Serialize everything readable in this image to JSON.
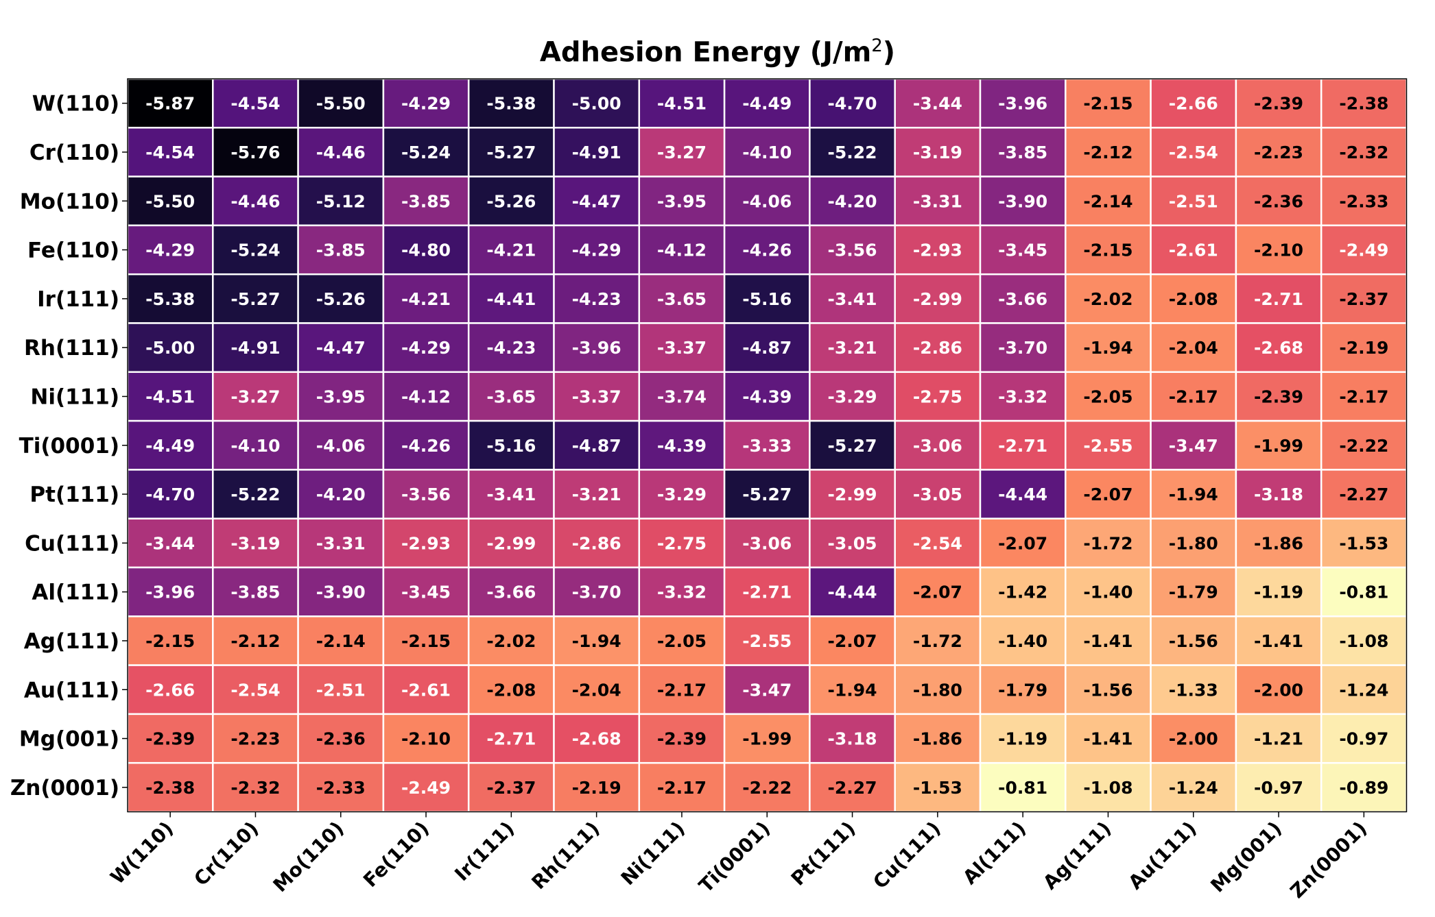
{
  "chart_data": {
    "type": "heatmap",
    "title": "Adhesion Energy (J/m",
    "title_superscript": "2",
    "title_suffix": ")",
    "colormap": "magma",
    "color_range": [
      -5.87,
      -0.81
    ],
    "grid": true,
    "text_colors": {
      "light": "#ffffff",
      "dark": "#000000"
    },
    "rows": [
      "W(110)",
      "Cr(110)",
      "Mo(110)",
      "Fe(110)",
      "Ir(111)",
      "Rh(111)",
      "Ni(111)",
      "Ti(0001)",
      "Pt(111)",
      "Cu(111)",
      "Al(111)",
      "Ag(111)",
      "Au(111)",
      "Mg(001)",
      "Zn(0001)"
    ],
    "columns": [
      "W(110)",
      "Cr(110)",
      "Mo(110)",
      "Fe(110)",
      "Ir(111)",
      "Rh(111)",
      "Ni(111)",
      "Ti(0001)",
      "Pt(111)",
      "Cu(111)",
      "Al(111)",
      "Ag(111)",
      "Au(111)",
      "Mg(001)",
      "Zn(0001)"
    ],
    "values": [
      [
        -5.87,
        -4.54,
        -5.5,
        -4.29,
        -5.38,
        -5.0,
        -4.51,
        -4.49,
        -4.7,
        -3.44,
        -3.96,
        -2.15,
        -2.66,
        -2.39,
        -2.38
      ],
      [
        -4.54,
        -5.76,
        -4.46,
        -5.24,
        -5.27,
        -4.91,
        -3.27,
        -4.1,
        -5.22,
        -3.19,
        -3.85,
        -2.12,
        -2.54,
        -2.23,
        -2.32
      ],
      [
        -5.5,
        -4.46,
        -5.12,
        -3.85,
        -5.26,
        -4.47,
        -3.95,
        -4.06,
        -4.2,
        -3.31,
        -3.9,
        -2.14,
        -2.51,
        -2.36,
        -2.33
      ],
      [
        -4.29,
        -5.24,
        -3.85,
        -4.8,
        -4.21,
        -4.29,
        -4.12,
        -4.26,
        -3.56,
        -2.93,
        -3.45,
        -2.15,
        -2.61,
        -2.1,
        -2.49
      ],
      [
        -5.38,
        -5.27,
        -5.26,
        -4.21,
        -4.41,
        -4.23,
        -3.65,
        -5.16,
        -3.41,
        -2.99,
        -3.66,
        -2.02,
        -2.08,
        -2.71,
        -2.37
      ],
      [
        -5.0,
        -4.91,
        -4.47,
        -4.29,
        -4.23,
        -3.96,
        -3.37,
        -4.87,
        -3.21,
        -2.86,
        -3.7,
        -1.94,
        -2.04,
        -2.68,
        -2.19
      ],
      [
        -4.51,
        -3.27,
        -3.95,
        -4.12,
        -3.65,
        -3.37,
        -3.74,
        -4.39,
        -3.29,
        -2.75,
        -3.32,
        -2.05,
        -2.17,
        -2.39,
        -2.17
      ],
      [
        -4.49,
        -4.1,
        -4.06,
        -4.26,
        -5.16,
        -4.87,
        -4.39,
        -3.33,
        -5.27,
        -3.06,
        -2.71,
        -2.55,
        -3.47,
        -1.99,
        -2.22
      ],
      [
        -4.7,
        -5.22,
        -4.2,
        -3.56,
        -3.41,
        -3.21,
        -3.29,
        -5.27,
        -2.99,
        -3.05,
        -4.44,
        -2.07,
        -1.94,
        -3.18,
        -2.27
      ],
      [
        -3.44,
        -3.19,
        -3.31,
        -2.93,
        -2.99,
        -2.86,
        -2.75,
        -3.06,
        -3.05,
        -2.54,
        -2.07,
        -1.72,
        -1.8,
        -1.86,
        -1.53
      ],
      [
        -3.96,
        -3.85,
        -3.9,
        -3.45,
        -3.66,
        -3.7,
        -3.32,
        -2.71,
        -4.44,
        -2.07,
        -1.42,
        -1.4,
        -1.79,
        -1.19,
        -0.81
      ],
      [
        -2.15,
        -2.12,
        -2.14,
        -2.15,
        -2.02,
        -1.94,
        -2.05,
        -2.55,
        -2.07,
        -1.72,
        -1.4,
        -1.41,
        -1.56,
        -1.41,
        -1.08
      ],
      [
        -2.66,
        -2.54,
        -2.51,
        -2.61,
        -2.08,
        -2.04,
        -2.17,
        -3.47,
        -1.94,
        -1.8,
        -1.79,
        -1.56,
        -1.33,
        -2.0,
        -1.24
      ],
      [
        -2.39,
        -2.23,
        -2.36,
        -2.1,
        -2.71,
        -2.68,
        -2.39,
        -1.99,
        -3.18,
        -1.86,
        -1.19,
        -1.41,
        -2.0,
        -1.21,
        -0.97
      ],
      [
        -2.38,
        -2.32,
        -2.33,
        -2.49,
        -2.37,
        -2.19,
        -2.17,
        -2.22,
        -2.27,
        -1.53,
        -0.81,
        -1.08,
        -1.24,
        -0.97,
        -0.89
      ]
    ]
  }
}
